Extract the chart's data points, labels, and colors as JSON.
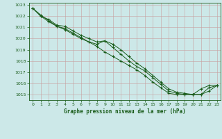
{
  "title": "Graphe pression niveau de la mer (hPa)",
  "background_color": "#cce8e8",
  "grid_color": "#b0c8c8",
  "line_color": "#1a5c1a",
  "xlim": [
    -0.5,
    23.5
  ],
  "ylim": [
    1014.5,
    1023.2
  ],
  "yticks": [
    1015,
    1016,
    1017,
    1018,
    1019,
    1020,
    1021,
    1022,
    1023
  ],
  "xticks": [
    0,
    1,
    2,
    3,
    4,
    5,
    6,
    7,
    8,
    9,
    10,
    11,
    12,
    13,
    14,
    15,
    16,
    17,
    18,
    19,
    20,
    21,
    22,
    23
  ],
  "series1_x": [
    0,
    1,
    2,
    3,
    4,
    5,
    6,
    7,
    8,
    9,
    10,
    11,
    12,
    13,
    14,
    15,
    16,
    17,
    18,
    19,
    20,
    21,
    22,
    23
  ],
  "series1_y": [
    1022.7,
    1022.1,
    1021.6,
    1021.1,
    1020.8,
    1020.4,
    1020.0,
    1019.7,
    1019.5,
    1019.8,
    1019.2,
    1018.6,
    1018.0,
    1017.5,
    1017.1,
    1016.5,
    1015.9,
    1015.3,
    1015.1,
    1015.0,
    1015.0,
    1015.5,
    1015.8,
    1015.8
  ],
  "series2_x": [
    0,
    1,
    2,
    3,
    4,
    5,
    6,
    7,
    8,
    9,
    10,
    11,
    12,
    13,
    14,
    15,
    16,
    17,
    18,
    19,
    20,
    21,
    22,
    23
  ],
  "series2_y": [
    1022.7,
    1022.0,
    1021.5,
    1021.1,
    1020.9,
    1020.5,
    1020.1,
    1019.7,
    1019.3,
    1018.8,
    1018.4,
    1018.0,
    1017.6,
    1017.2,
    1016.7,
    1016.1,
    1015.6,
    1015.1,
    1015.0,
    1015.0,
    1015.0,
    1015.0,
    1015.6,
    1015.8
  ],
  "series3_x": [
    0,
    1,
    2,
    3,
    4,
    5,
    6,
    7,
    8,
    9,
    10,
    11,
    12,
    13,
    14,
    15,
    16,
    17,
    18,
    19,
    20,
    21,
    22,
    23
  ],
  "series3_y": [
    1022.7,
    1022.0,
    1021.7,
    1021.2,
    1021.1,
    1020.7,
    1020.3,
    1020.0,
    1019.7,
    1019.8,
    1019.5,
    1019.0,
    1018.4,
    1017.8,
    1017.3,
    1016.7,
    1016.1,
    1015.5,
    1015.2,
    1015.1,
    1015.0,
    1015.0,
    1015.3,
    1015.8
  ]
}
